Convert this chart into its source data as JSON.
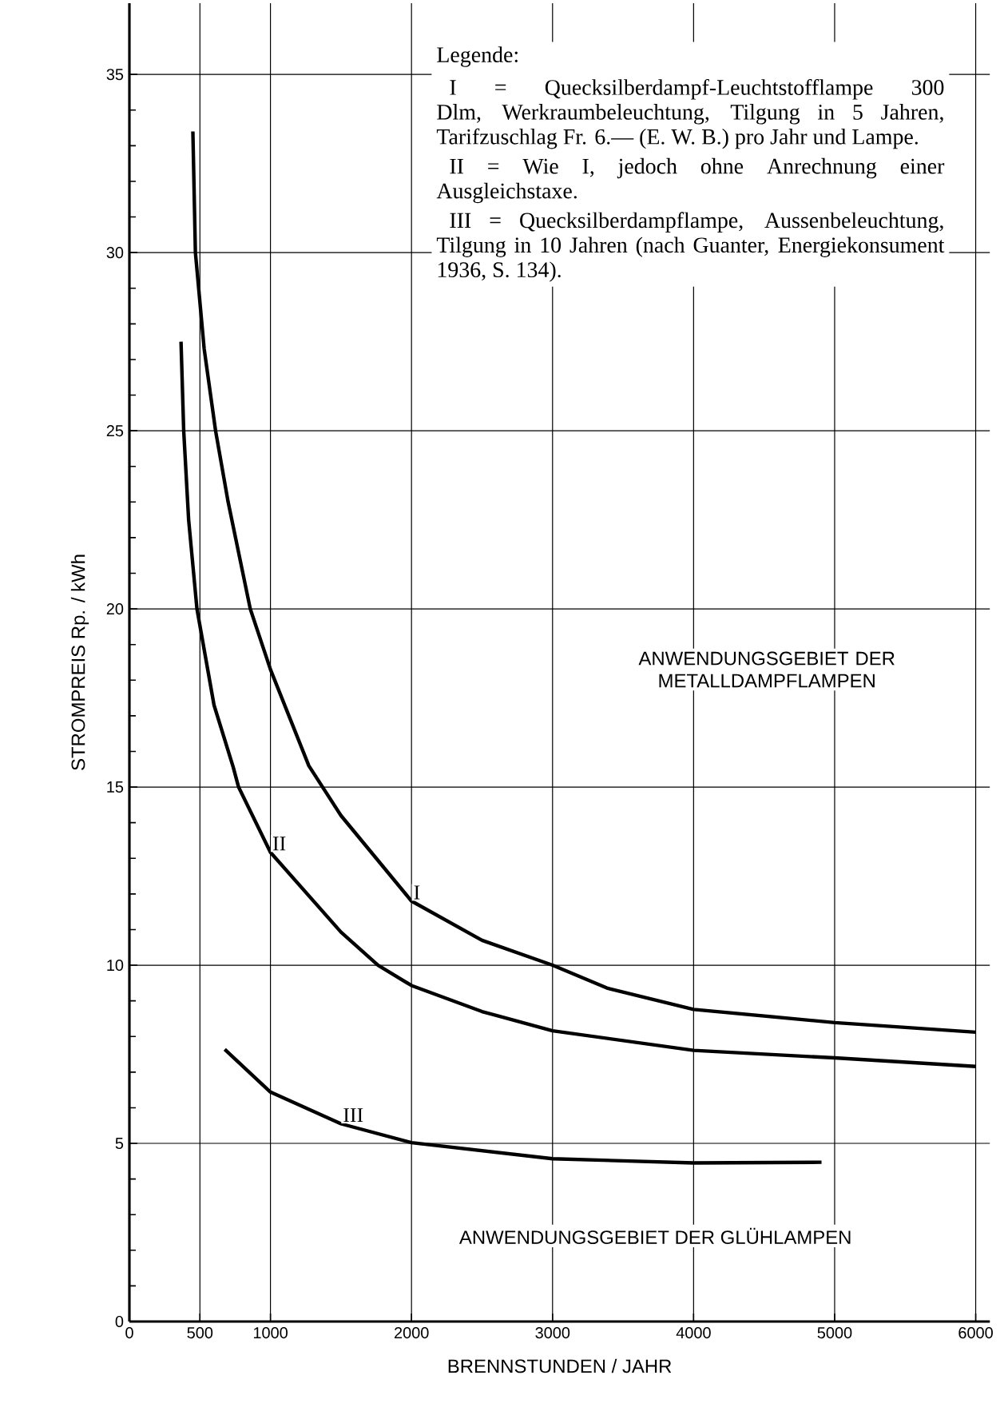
{
  "chart_data": {
    "type": "line",
    "xlabel": "BRENNSTUNDEN / JAHR",
    "ylabel": "STROMPREIS Rp. / kWh",
    "legend_title": "Legende:",
    "xlim": [
      0,
      6100
    ],
    "ylim": [
      0,
      37
    ],
    "xticks": [
      0,
      500,
      1000,
      2000,
      3000,
      4000,
      5000,
      6000
    ],
    "yticks": [
      0,
      5,
      10,
      15,
      20,
      25,
      30,
      35
    ],
    "grid": true,
    "line_style": "solid",
    "marker": "none",
    "series": [
      {
        "name": "I",
        "color": "#000000",
        "x": [
          450,
          468,
          530,
          611,
          700,
          857,
          1000,
          1272,
          1500,
          2000,
          2500,
          3000,
          3385,
          4000,
          5000,
          6000
        ],
        "values": [
          33.4,
          30,
          27.3,
          25,
          23,
          20,
          18.3,
          15.6,
          14.2,
          11.8,
          10.7,
          10,
          9.36,
          8.76,
          8.39,
          8.12
        ]
      },
      {
        "name": "II",
        "color": "#000000",
        "x": [
          366,
          385,
          420,
          479,
          600,
          736,
          774,
          1000,
          1500,
          1763,
          2000,
          2500,
          3000,
          4000,
          5000,
          6000
        ],
        "values": [
          27.5,
          25,
          22.5,
          20,
          17.3,
          15.56,
          15,
          13.17,
          10.93,
          10,
          9.43,
          8.7,
          8.16,
          7.61,
          7.4,
          7.16
        ]
      },
      {
        "name": "III",
        "color": "#000000",
        "x": [
          676,
          1000,
          1500,
          2000,
          3000,
          4000,
          4907
        ],
        "values": [
          7.64,
          6.44,
          5.55,
          5.02,
          4.57,
          4.45,
          4.47
        ]
      }
    ],
    "annotations": [
      "I = Quecksilberdampf-Leuchtstofflampe 300 Dlm, Werkraumbeleuchtung, Tilgung in 5 Jahren, Tarifzuschlag Fr. 6.— (E. W. B.) pro Jahr und Lampe.",
      "II = Wie I, jedoch ohne Anrechnung einer Ausgleichstaxe.",
      "III = Quecksilberdampflampe, Aussenbeleuchtung, Tilgung in 10 Jahren (nach Guanter, Energiekonsument 1936, S. 134).",
      "ANWENDUNGSGEBIET DER METALLDAMPFLAMPEN",
      "ANWENDUNGSGEBIET DER GLÜHLAMPEN"
    ]
  }
}
